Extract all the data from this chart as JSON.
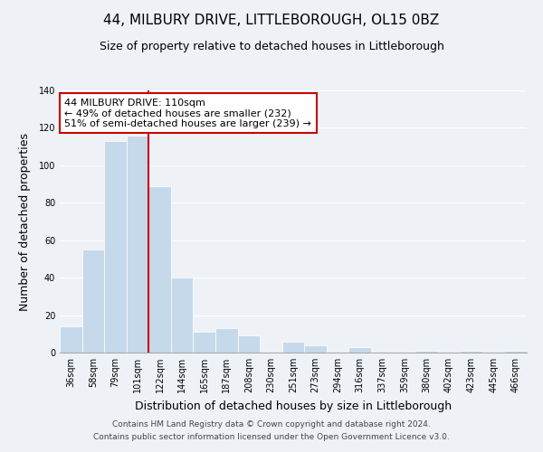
{
  "title": "44, MILBURY DRIVE, LITTLEBOROUGH, OL15 0BZ",
  "subtitle": "Size of property relative to detached houses in Littleborough",
  "xlabel": "Distribution of detached houses by size in Littleborough",
  "ylabel": "Number of detached properties",
  "categories": [
    "36sqm",
    "58sqm",
    "79sqm",
    "101sqm",
    "122sqm",
    "144sqm",
    "165sqm",
    "187sqm",
    "208sqm",
    "230sqm",
    "251sqm",
    "273sqm",
    "294sqm",
    "316sqm",
    "337sqm",
    "359sqm",
    "380sqm",
    "402sqm",
    "423sqm",
    "445sqm",
    "466sqm"
  ],
  "values": [
    14,
    55,
    113,
    116,
    89,
    40,
    11,
    13,
    9,
    0,
    6,
    4,
    0,
    3,
    0,
    0,
    1,
    0,
    1,
    0,
    1
  ],
  "bar_color": "#c5d9ea",
  "bar_edge_color": "#ffffff",
  "vline_x_index": 3.5,
  "vline_color": "#cc0000",
  "annotation_line1": "44 MILBURY DRIVE: 110sqm",
  "annotation_line2": "← 49% of detached houses are smaller (232)",
  "annotation_line3": "51% of semi-detached houses are larger (239) →",
  "annotation_box_edgecolor": "#cc0000",
  "annotation_box_facecolor": "#ffffff",
  "ylim": [
    0,
    140
  ],
  "yticks": [
    0,
    20,
    40,
    60,
    80,
    100,
    120,
    140
  ],
  "footer_line1": "Contains HM Land Registry data © Crown copyright and database right 2024.",
  "footer_line2": "Contains public sector information licensed under the Open Government Licence v3.0.",
  "title_fontsize": 11,
  "subtitle_fontsize": 9,
  "xlabel_fontsize": 9,
  "ylabel_fontsize": 9,
  "tick_fontsize": 7,
  "annotation_fontsize": 8,
  "footer_fontsize": 6.5,
  "background_color": "#eef2f7",
  "grid_color": "#ffffff",
  "spine_color": "#aaaaaa"
}
